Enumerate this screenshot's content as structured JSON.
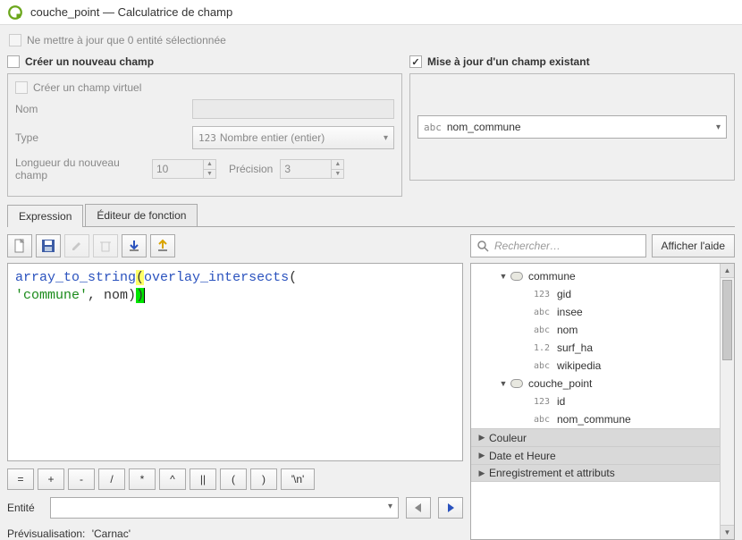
{
  "window": {
    "title": "couche_point — Calculatrice de champ"
  },
  "update_only_selected": {
    "label": "Ne mettre à jour que 0 entité sélectionnée",
    "checked": false,
    "enabled": false
  },
  "create_new": {
    "header": "Créer un nouveau champ",
    "checked": false,
    "virtual": {
      "label": "Créer un champ virtuel",
      "checked": false,
      "enabled": false
    },
    "name_label": "Nom",
    "type_label": "Type",
    "type_value": "Nombre entier (entier)",
    "type_prefix": "123",
    "length_label": "Longueur du nouveau champ",
    "length_value": "10",
    "precision_label": "Précision",
    "precision_value": "3"
  },
  "update_existing": {
    "header": "Mise à jour d'un champ existant",
    "checked": true,
    "field_prefix": "abc",
    "field_value": "nom_commune"
  },
  "tabs": {
    "expression": "Expression",
    "function_editor": "Éditeur de fonction"
  },
  "expression": {
    "tokens": [
      {
        "t": "array_to_string",
        "c": "fn"
      },
      {
        "t": "(",
        "c": "hl-yellow"
      },
      {
        "t": "overlay_intersects",
        "c": "fn"
      },
      {
        "t": "(",
        "c": ""
      },
      {
        "t": "\n",
        "c": "nl"
      },
      {
        "t": "'commune'",
        "c": "str"
      },
      {
        "t": ", ",
        "c": ""
      },
      {
        "t": "nom",
        "c": ""
      },
      {
        "t": ")",
        "c": ""
      },
      {
        "t": ")",
        "c": "hl-green"
      }
    ]
  },
  "operators": [
    "=",
    "+",
    "-",
    "/",
    "*",
    "^",
    "||",
    "(",
    ")",
    "'\\n'"
  ],
  "entity": {
    "label": "Entité"
  },
  "preview": {
    "label": "Prévisualisation:",
    "value": "'Carnac'"
  },
  "search": {
    "placeholder": "Rechercher…",
    "help_button": "Afficher l'aide"
  },
  "tree": {
    "layers": [
      {
        "name": "commune",
        "expanded": true,
        "fields": [
          {
            "type": "123",
            "name": "gid"
          },
          {
            "type": "abc",
            "name": "insee"
          },
          {
            "type": "abc",
            "name": "nom"
          },
          {
            "type": "1.2",
            "name": "surf_ha"
          },
          {
            "type": "abc",
            "name": "wikipedia"
          }
        ]
      },
      {
        "name": "couche_point",
        "expanded": true,
        "fields": [
          {
            "type": "123",
            "name": "id"
          },
          {
            "type": "abc",
            "name": "nom_commune"
          }
        ]
      }
    ],
    "categories": [
      "Couleur",
      "Date et Heure",
      "Enregistrement et attributs"
    ]
  }
}
